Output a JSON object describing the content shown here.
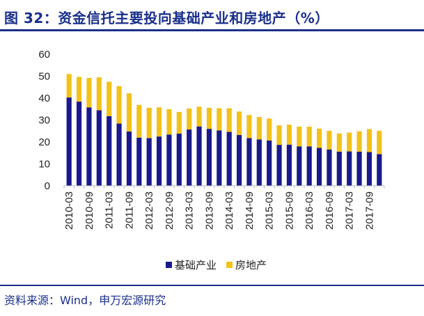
{
  "title": "图 32：资金信托主要投向基础产业和房地产（%）",
  "source": "资料来源：Wind，申万宏源研究",
  "colors": {
    "series1": "#1a1a8c",
    "series2": "#f2c21a",
    "brand": "#1a2f8a"
  },
  "chart_data": {
    "type": "bar",
    "stacked": true,
    "ylim": [
      0,
      60
    ],
    "yticks": [
      "0",
      "10",
      "20",
      "30",
      "40",
      "50",
      "60"
    ],
    "categories": [
      "2010-03",
      "2010-06",
      "2010-09",
      "2010-12",
      "2011-03",
      "2011-06",
      "2011-09",
      "2011-12",
      "2012-03",
      "2012-06",
      "2012-09",
      "2012-12",
      "2013-03",
      "2013-06",
      "2013-09",
      "2013-12",
      "2014-03",
      "2014-06",
      "2014-09",
      "2014-12",
      "2015-03",
      "2015-06",
      "2015-09",
      "2015-12",
      "2016-03",
      "2016-06",
      "2016-09",
      "2016-12",
      "2017-03",
      "2017-06",
      "2017-09",
      "2017-12"
    ],
    "xtick_labels": [
      "2010-03",
      "",
      "2010-09",
      "",
      "2011-03",
      "",
      "2011-09",
      "",
      "2012-03",
      "",
      "2012-09",
      "",
      "2013-03",
      "",
      "2013-09",
      "",
      "2014-03",
      "",
      "2014-09",
      "",
      "2015-03",
      "",
      "2015-09",
      "",
      "2016-03",
      "",
      "2016-09",
      "",
      "2017-03",
      "",
      "2017-09",
      ""
    ],
    "series": [
      {
        "name": "基础产业",
        "values": [
          40.3,
          38.4,
          35.8,
          34.5,
          31.8,
          28.4,
          24.8,
          22.0,
          21.8,
          22.5,
          23.4,
          23.8,
          25.7,
          27.1,
          26.0,
          25.3,
          24.6,
          23.2,
          21.8,
          21.2,
          20.7,
          18.7,
          18.8,
          18.0,
          18.0,
          17.3,
          16.6,
          15.6,
          15.7,
          15.6,
          15.4,
          14.5
        ]
      },
      {
        "name": "房地产",
        "values": [
          10.7,
          11.3,
          13.4,
          15.0,
          15.7,
          17.1,
          17.4,
          14.9,
          13.8,
          13.3,
          11.6,
          9.9,
          9.6,
          9.0,
          9.6,
          10.1,
          10.8,
          10.7,
          10.5,
          10.2,
          10.0,
          8.9,
          9.1,
          9.0,
          9.0,
          8.8,
          8.5,
          8.3,
          8.6,
          9.3,
          10.5,
          10.6
        ]
      }
    ]
  }
}
